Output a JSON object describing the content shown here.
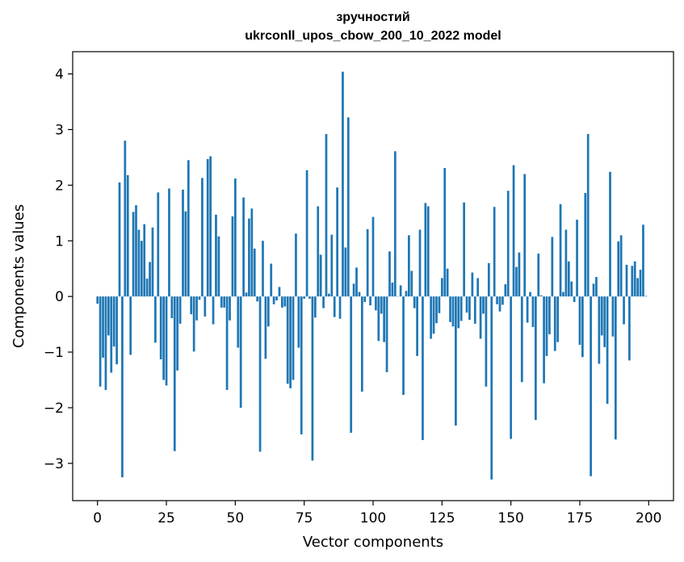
{
  "chart_data": {
    "type": "bar",
    "title": "зручностий",
    "subtitle": "ukrconll_upos_cbow_200_10_2022 model",
    "xlabel": "Vector components",
    "ylabel": "Components values",
    "xlim": [
      -9,
      209
    ],
    "ylim": [
      -3.67,
      4.4
    ],
    "xticks": [
      0,
      25,
      50,
      75,
      100,
      125,
      150,
      175,
      200
    ],
    "yticks": [
      -3,
      -2,
      -1,
      0,
      1,
      2,
      3,
      4
    ],
    "ytick_labels": [
      "−3",
      "−2",
      "−1",
      "0",
      "1",
      "2",
      "3",
      "4"
    ],
    "grid": false,
    "bar_color": "#1f77b4",
    "values": [
      -0.13,
      -1.62,
      -1.1,
      -1.68,
      -0.7,
      -1.37,
      -0.9,
      -1.22,
      2.05,
      -3.25,
      2.8,
      2.18,
      -1.05,
      1.52,
      1.64,
      1.2,
      1.0,
      1.3,
      0.32,
      0.62,
      1.24,
      -0.83,
      1.87,
      -1.13,
      -1.5,
      -1.6,
      1.94,
      -0.39,
      -2.78,
      -1.33,
      -0.49,
      1.92,
      1.53,
      2.45,
      -0.32,
      -0.99,
      -0.43,
      -0.06,
      2.13,
      -0.36,
      2.47,
      2.52,
      -0.5,
      1.47,
      1.08,
      -0.2,
      -0.2,
      -1.68,
      -0.43,
      1.44,
      2.12,
      -0.92,
      -2.0,
      1.78,
      0.07,
      1.4,
      1.58,
      0.86,
      -0.09,
      -2.79,
      1.0,
      -1.12,
      -0.54,
      0.59,
      -0.14,
      -0.07,
      0.17,
      -0.2,
      -0.18,
      -1.57,
      -1.65,
      -1.5,
      1.13,
      -0.92,
      -2.48,
      -0.04,
      2.27,
      -0.04,
      -2.95,
      -0.38,
      1.62,
      0.75,
      -0.21,
      2.92,
      0.05,
      1.11,
      -0.37,
      1.96,
      -0.4,
      4.04,
      0.88,
      3.22,
      -2.45,
      0.23,
      0.52,
      0.08,
      -1.71,
      -0.1,
      1.21,
      -0.16,
      1.43,
      -0.25,
      -0.8,
      -0.31,
      -0.82,
      -1.36,
      0.81,
      0.25,
      2.61,
      0.0,
      0.2,
      -1.77,
      0.1,
      1.1,
      0.46,
      -0.21,
      -1.07,
      1.2,
      -2.58,
      1.68,
      1.62,
      -0.76,
      -0.67,
      -0.48,
      -0.3,
      0.33,
      2.31,
      0.5,
      -0.46,
      -0.54,
      -2.32,
      -0.57,
      -0.44,
      1.69,
      -0.29,
      -0.42,
      0.43,
      -0.49,
      0.33,
      -0.76,
      -0.31,
      -1.62,
      0.6,
      -3.29,
      1.61,
      -0.14,
      -0.27,
      -0.15,
      0.22,
      1.9,
      -2.56,
      2.36,
      0.53,
      0.79,
      -1.54,
      2.2,
      -0.47,
      0.08,
      -0.55,
      -2.22,
      0.77,
      0.02,
      -1.56,
      -1.07,
      -0.68,
      1.07,
      -0.98,
      -0.82,
      1.66,
      0.08,
      1.2,
      0.63,
      0.27,
      -0.1,
      1.38,
      -0.87,
      -1.09,
      1.86,
      2.92,
      -3.23,
      0.23,
      0.35,
      -1.21,
      -0.7,
      -0.91,
      -1.93,
      2.24,
      -0.72,
      -2.57,
      0.99,
      1.1,
      -0.5,
      0.57,
      -1.15,
      0.55,
      0.63,
      0.33,
      0.48,
      1.29,
      0.01
    ]
  }
}
